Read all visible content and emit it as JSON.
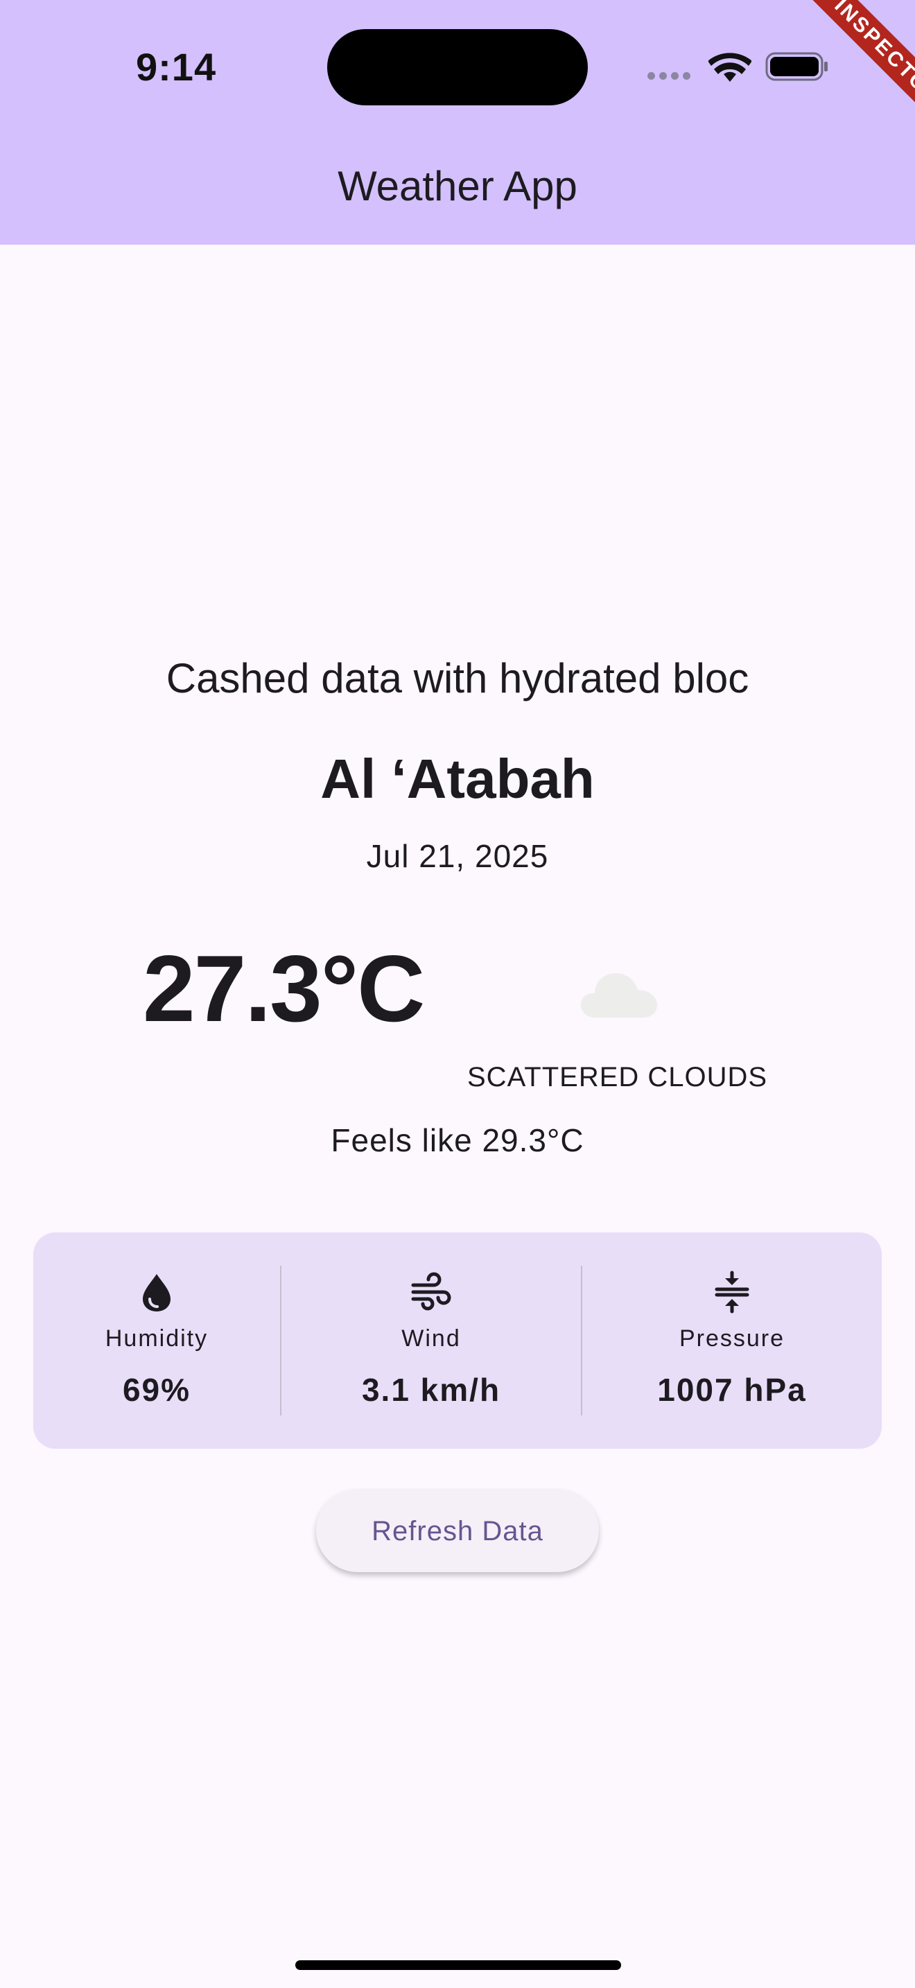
{
  "status_bar": {
    "time": "9:14",
    "icons": [
      "signal-icon",
      "wifi-icon",
      "battery-icon"
    ]
  },
  "debug_banner": "INSPECTOR",
  "app_bar": {
    "title": "Weather App"
  },
  "weather": {
    "subtitle": "Cashed data with hydrated bloc",
    "city": "Al ‘Atabah",
    "date": "Jul 21, 2025",
    "temperature": "27.3°C",
    "condition_icon": "cloud-icon",
    "condition": "SCATTERED CLOUDS",
    "feels_like": "Feels like 29.3°C"
  },
  "details": [
    {
      "icon": "water-drop-icon",
      "label": "Humidity",
      "value": "69%"
    },
    {
      "icon": "wind-icon",
      "label": "Wind",
      "value": "3.1 km/h"
    },
    {
      "icon": "pressure-icon",
      "label": "Pressure",
      "value": "1007 hPa"
    }
  ],
  "actions": {
    "refresh_label": "Refresh Data"
  },
  "colors": {
    "app_bar": "#D3C0FD",
    "background": "#FDF7FE",
    "card": "#E8DEF8",
    "button_text": "#65558F",
    "banner": "#B3261E"
  }
}
